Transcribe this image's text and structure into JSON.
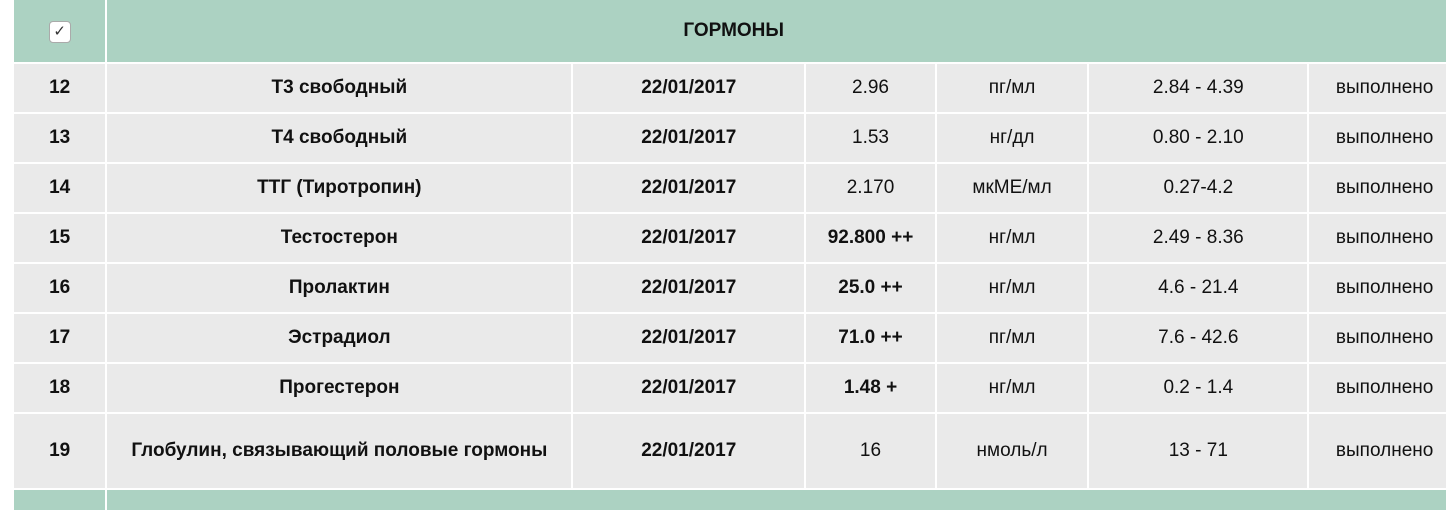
{
  "section_title": "ГОРМОНЫ",
  "select_all_checked": true,
  "colors": {
    "header": "#acd2c2",
    "row": "#eaeaea"
  },
  "rows": [
    {
      "num": "12",
      "name": "Т3 свободный",
      "date": "22/01/2017",
      "value": "2.96",
      "unit": "пг/мл",
      "range": "2.84 - 4.39",
      "status": "выполнено",
      "flag": false
    },
    {
      "num": "13",
      "name": "Т4 свободный",
      "date": "22/01/2017",
      "value": "1.53",
      "unit": "нг/дл",
      "range": "0.80 - 2.10",
      "status": "выполнено",
      "flag": false
    },
    {
      "num": "14",
      "name": "ТТГ (Тиротропин)",
      "date": "22/01/2017",
      "value": "2.170",
      "unit": "мкМЕ/мл",
      "range": "0.27-4.2",
      "status": "выполнено",
      "flag": false
    },
    {
      "num": "15",
      "name": "Тестостерон",
      "date": "22/01/2017",
      "value": "92.800 ++",
      "unit": "нг/мл",
      "range": "2.49 - 8.36",
      "status": "выполнено",
      "flag": true
    },
    {
      "num": "16",
      "name": "Пролактин",
      "date": "22/01/2017",
      "value": "25.0 ++",
      "unit": "нг/мл",
      "range": "4.6 - 21.4",
      "status": "выполнено",
      "flag": true
    },
    {
      "num": "17",
      "name": "Эстрадиол",
      "date": "22/01/2017",
      "value": "71.0 ++",
      "unit": "пг/мл",
      "range": "7.6 - 42.6",
      "status": "выполнено",
      "flag": true
    },
    {
      "num": "18",
      "name": "Прогестерон",
      "date": "22/01/2017",
      "value": "1.48 +",
      "unit": "нг/мл",
      "range": "0.2 - 1.4",
      "status": "выполнено",
      "flag": true
    },
    {
      "num": "19",
      "name": "Глобулин, связывающий половые гормоны",
      "date": "22/01/2017",
      "value": "16",
      "unit": "нмоль/л",
      "range": "13 - 71",
      "status": "выполнено",
      "flag": false
    }
  ]
}
